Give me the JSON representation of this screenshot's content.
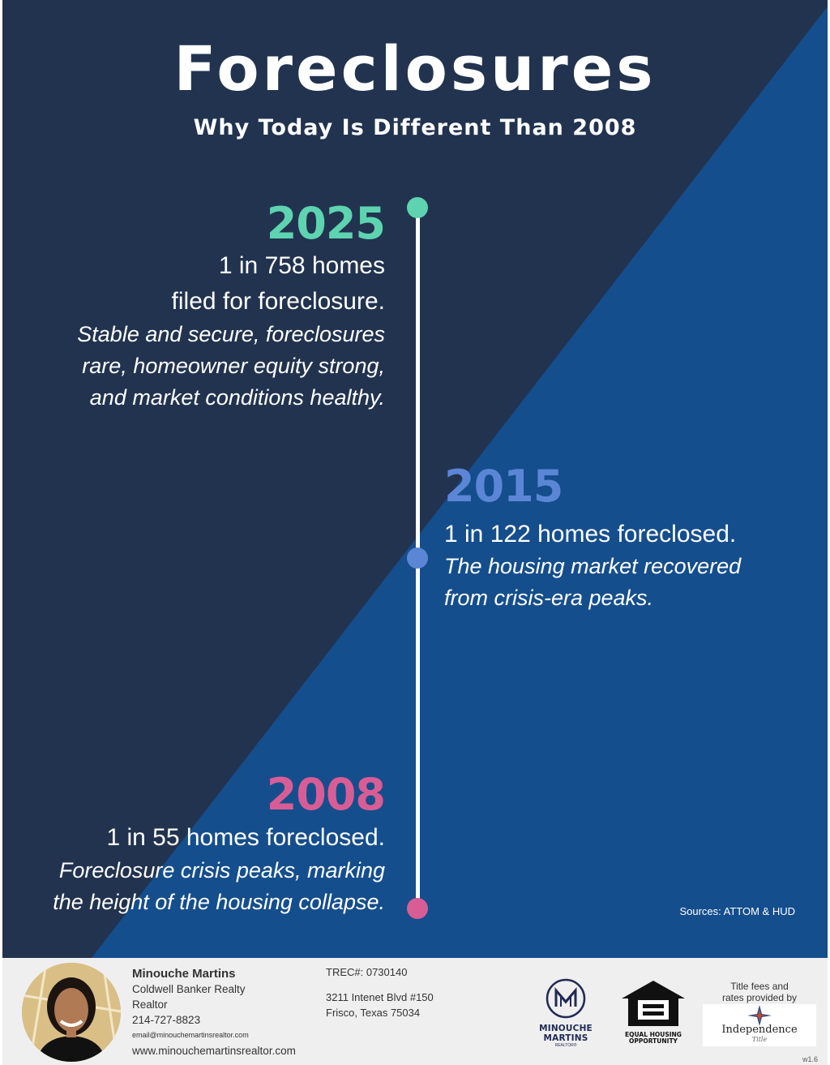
{
  "title": "Foreclosures",
  "subtitle": "Why Today Is Different Than 2008",
  "colors": {
    "dark_navy": "#22334f",
    "royal_blue": "#154e8d",
    "teal": "#5ed3b0",
    "periwinkle": "#5b86d6",
    "pink": "#d95d95"
  },
  "timeline": {
    "y2025": {
      "year": "2025",
      "stat_line1": "1 in 758 homes",
      "stat_line2": "filed for foreclosure.",
      "desc_line1": "Stable and secure, foreclosures",
      "desc_line2": "rare, homeowner equity strong,",
      "desc_line3": "and market conditions healthy."
    },
    "y2015": {
      "year": "2015",
      "stat": "1 in 122 homes foreclosed.",
      "desc_line1": "The housing market recovered",
      "desc_line2": "from crisis-era peaks."
    },
    "y2008": {
      "year": "2008",
      "stat": "1 in 55 homes foreclosed.",
      "desc_line1": "Foreclosure crisis peaks, marking",
      "desc_line2": "the height of the housing collapse."
    }
  },
  "sources": "Sources: ATTOM & HUD",
  "footer": {
    "agent_name": "Minouche Martins",
    "company": "Coldwell Banker Realty",
    "role": "Realtor",
    "phone": "214-727-8823",
    "email": "email@minouchemartinsrealtor.com",
    "website": "www.minouchemartinsrealtor.com",
    "trec": "TREC#: 0730140",
    "address_line1": "3211 Intenet Blvd #150",
    "address_line2": "Frisco, Texas 75034",
    "mm_logo_text": "MINOUCHE MARTINS",
    "mm_logo_sub": "REALTOR®",
    "eho_line1": "EQUAL HOUSING",
    "eho_line2": "OPPORTUNITY",
    "title_fees_line1": "Title fees and",
    "title_fees_line2": "rates provided by",
    "title_company": "Independence",
    "title_company_sub": "Title",
    "version": "w1.6"
  }
}
